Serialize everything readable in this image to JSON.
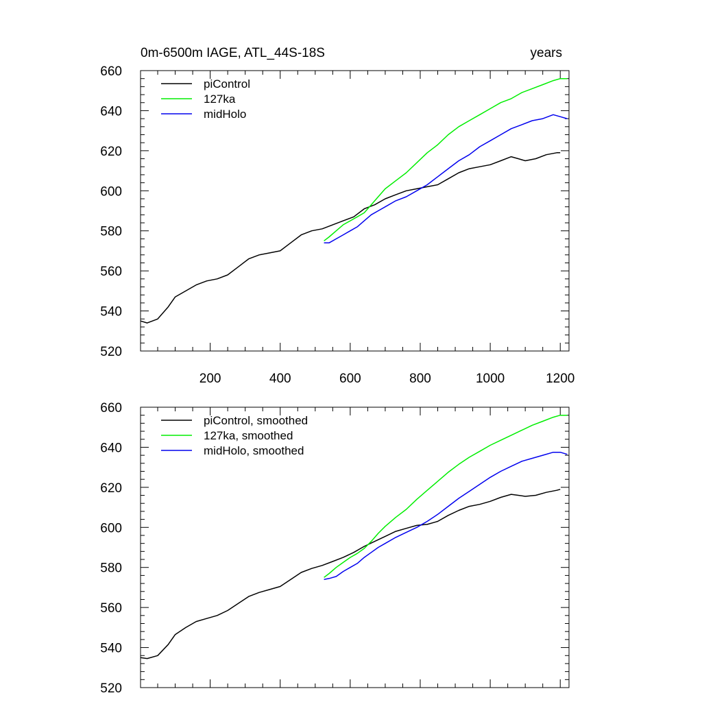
{
  "title_left": "0m-6500m IAGE, ATL_44S-18S",
  "title_right": "years",
  "colors": {
    "piControl": "#000000",
    "127ka": "#00ee00",
    "midHolo": "#0000ee"
  },
  "chart_data": [
    {
      "type": "line",
      "name": "raw",
      "title": "0m-6500m IAGE, ATL_44S-18S",
      "units_label": "years",
      "xlim": [
        1,
        1225
      ],
      "ylim": [
        520,
        660
      ],
      "x_ticks": [
        200,
        400,
        600,
        800,
        1000,
        1200
      ],
      "y_ticks": [
        520,
        540,
        560,
        580,
        600,
        620,
        640,
        660
      ],
      "x_tick_labels": [
        "200",
        "400",
        "600",
        "800",
        "1000",
        "1200"
      ],
      "y_tick_labels": [
        "520",
        "540",
        "560",
        "580",
        "600",
        "620",
        "640",
        "660"
      ],
      "legend": [
        "piControl",
        "127ka",
        "midHolo"
      ],
      "legend_position": "top-left",
      "series": [
        {
          "name": "piControl",
          "color": "#000000",
          "x": [
            1,
            20,
            50,
            80,
            100,
            130,
            160,
            190,
            220,
            250,
            280,
            310,
            340,
            370,
            400,
            430,
            460,
            490,
            520,
            550,
            580,
            610,
            640,
            670,
            700,
            730,
            760,
            790,
            820,
            850,
            880,
            910,
            940,
            970,
            1000,
            1030,
            1060,
            1080,
            1100,
            1130,
            1160,
            1190,
            1200
          ],
          "y": [
            535,
            534,
            536,
            542,
            547,
            550,
            553,
            555,
            556,
            558,
            562,
            566,
            568,
            569,
            570,
            574,
            578,
            580,
            581,
            583,
            585,
            587,
            591,
            593,
            596,
            598,
            600,
            601,
            602,
            603,
            606,
            609,
            611,
            612,
            613,
            615,
            617,
            616,
            615,
            616,
            618,
            619,
            619
          ]
        },
        {
          "name": "127ka",
          "color": "#00ee00",
          "x": [
            525,
            540,
            560,
            580,
            600,
            620,
            640,
            660,
            680,
            700,
            730,
            760,
            790,
            820,
            850,
            880,
            910,
            940,
            970,
            1000,
            1030,
            1060,
            1090,
            1120,
            1150,
            1180,
            1200,
            1220
          ],
          "y": [
            575,
            577,
            580,
            583,
            585,
            587,
            589,
            593,
            597,
            601,
            605,
            609,
            614,
            619,
            623,
            628,
            632,
            635,
            638,
            641,
            644,
            646,
            649,
            651,
            653,
            655,
            656,
            656
          ]
        },
        {
          "name": "midHolo",
          "color": "#0000ee",
          "x": [
            525,
            540,
            560,
            580,
            600,
            620,
            640,
            660,
            680,
            700,
            730,
            760,
            790,
            820,
            850,
            880,
            910,
            940,
            970,
            1000,
            1030,
            1060,
            1090,
            1120,
            1150,
            1180,
            1200,
            1220
          ],
          "y": [
            574,
            574,
            576,
            578,
            580,
            582,
            585,
            588,
            590,
            592,
            595,
            597,
            600,
            603,
            607,
            611,
            615,
            618,
            622,
            625,
            628,
            631,
            633,
            635,
            636,
            638,
            637,
            636
          ]
        }
      ]
    },
    {
      "type": "line",
      "name": "smoothed",
      "xlim": [
        1,
        1225
      ],
      "ylim": [
        520,
        660
      ],
      "x_ticks": [
        200,
        400,
        600,
        800,
        1000,
        1200
      ],
      "y_ticks": [
        520,
        540,
        560,
        580,
        600,
        620,
        640,
        660
      ],
      "x_tick_labels": [],
      "y_tick_labels": [
        "520",
        "540",
        "560",
        "580",
        "600",
        "620",
        "640",
        "660"
      ],
      "legend": [
        "piControl, smoothed",
        "127ka, smoothed",
        "midHolo, smoothed"
      ],
      "legend_position": "top-left",
      "series": [
        {
          "name": "piControl, smoothed",
          "color": "#000000",
          "x": [
            1,
            20,
            50,
            80,
            100,
            130,
            160,
            190,
            220,
            250,
            280,
            310,
            340,
            370,
            400,
            430,
            460,
            490,
            520,
            550,
            580,
            610,
            640,
            670,
            700,
            730,
            760,
            790,
            820,
            850,
            880,
            910,
            940,
            970,
            1000,
            1030,
            1060,
            1080,
            1100,
            1130,
            1160,
            1190,
            1200
          ],
          "y": [
            535,
            534.5,
            536,
            541.5,
            546.5,
            550,
            553,
            554.5,
            556,
            558.5,
            562,
            565.5,
            567.5,
            569,
            570.5,
            574,
            577.5,
            579.5,
            581,
            583,
            585,
            587.5,
            590.5,
            593,
            595.5,
            598,
            599.5,
            601,
            601.5,
            603,
            606,
            608.5,
            610.5,
            611.5,
            613,
            615,
            616.5,
            616,
            615.5,
            616,
            617.5,
            618.5,
            619
          ]
        },
        {
          "name": "127ka, smoothed",
          "color": "#00ee00",
          "x": [
            525,
            540,
            560,
            580,
            600,
            620,
            640,
            660,
            680,
            700,
            730,
            760,
            790,
            820,
            850,
            880,
            910,
            940,
            970,
            1000,
            1030,
            1060,
            1090,
            1120,
            1150,
            1180,
            1200,
            1220
          ],
          "y": [
            575,
            577,
            580,
            582.5,
            585,
            587,
            589.5,
            593,
            597,
            600.5,
            605,
            609,
            614,
            618.5,
            623,
            627.5,
            631.5,
            635,
            638,
            641,
            643.5,
            646,
            648.5,
            651,
            653,
            655,
            656,
            656
          ]
        },
        {
          "name": "midHolo, smoothed",
          "color": "#0000ee",
          "x": [
            525,
            540,
            560,
            580,
            600,
            620,
            640,
            660,
            680,
            700,
            730,
            760,
            790,
            820,
            850,
            880,
            910,
            940,
            970,
            1000,
            1030,
            1060,
            1090,
            1120,
            1150,
            1180,
            1200,
            1220
          ],
          "y": [
            574,
            574.5,
            575.5,
            578,
            580,
            582,
            585,
            587.5,
            590,
            592,
            595,
            597.5,
            600,
            603,
            606.5,
            610.5,
            614.5,
            618,
            621.5,
            625,
            628,
            630.5,
            633,
            634.5,
            636,
            637.5,
            637.5,
            636.5
          ]
        }
      ]
    }
  ]
}
